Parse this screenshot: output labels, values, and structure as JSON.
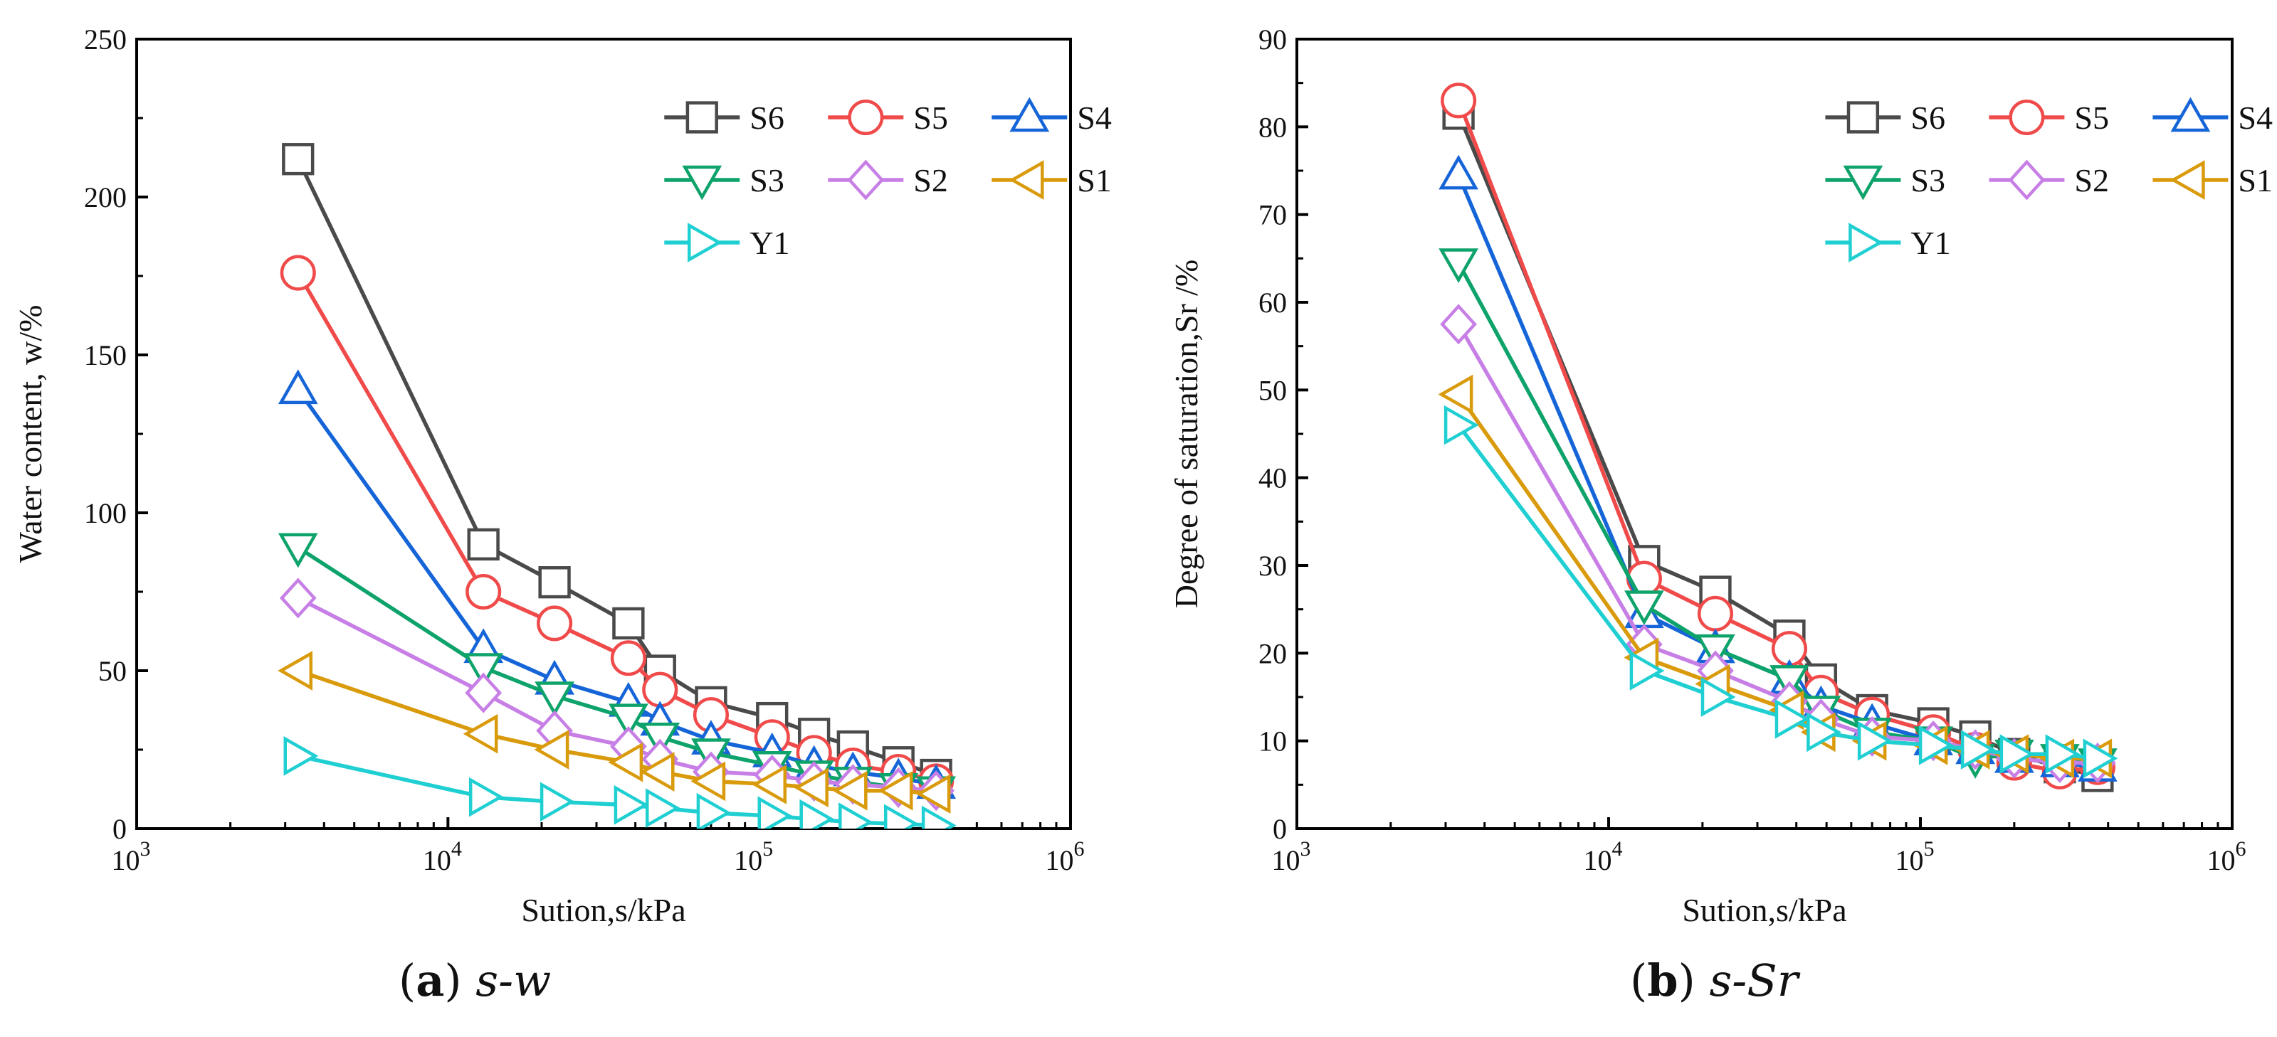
{
  "chart_data": [
    {
      "type": "line",
      "id": "a",
      "caption_letter": "a",
      "caption_text": "s-w",
      "xscale": "log",
      "xlabel": "Sution,s/kPa",
      "ylabel": "Water content, w/%",
      "xlim": [
        1000,
        1000000
      ],
      "ylim": [
        0,
        250
      ],
      "x_ticks": [
        {
          "base": "10",
          "exp": "3"
        },
        {
          "base": "10",
          "exp": "4"
        },
        {
          "base": "10",
          "exp": "5"
        },
        {
          "base": "10",
          "exp": "6"
        }
      ],
      "y_ticks": [
        "0",
        "50",
        "100",
        "150",
        "200",
        "250"
      ],
      "legend_position": "top-right",
      "series": [
        {
          "name": "S6",
          "color": "#4a4a4a",
          "marker": "square",
          "x": [
            3300,
            13000,
            22000,
            38000,
            48000,
            70000,
            110000,
            150000,
            200000,
            280000,
            370000
          ],
          "y": [
            212,
            90,
            78,
            65,
            50,
            40,
            35,
            30,
            26,
            21,
            17
          ]
        },
        {
          "name": "S5",
          "color": "#f04a4a",
          "marker": "circle",
          "x": [
            3300,
            13000,
            22000,
            38000,
            48000,
            70000,
            110000,
            150000,
            200000,
            280000,
            370000
          ],
          "y": [
            176,
            75,
            65,
            54,
            44,
            36,
            29,
            24,
            20,
            18,
            15
          ]
        },
        {
          "name": "S4",
          "color": "#1565d8",
          "marker": "triangle-up",
          "x": [
            3300,
            13000,
            22000,
            38000,
            48000,
            70000,
            110000,
            150000,
            200000,
            280000,
            370000
          ],
          "y": [
            139,
            57,
            47,
            40,
            34,
            28,
            24,
            20,
            18,
            16,
            14
          ]
        },
        {
          "name": "S3",
          "color": "#0ea36a",
          "marker": "triangle-down",
          "x": [
            3300,
            13000,
            22000,
            38000,
            48000,
            70000,
            110000,
            150000,
            200000,
            280000,
            370000
          ],
          "y": [
            89,
            51,
            42,
            35,
            29,
            24,
            20,
            17,
            15,
            13,
            12
          ]
        },
        {
          "name": "S2",
          "color": "#c77fe6",
          "marker": "diamond",
          "x": [
            3300,
            13000,
            22000,
            38000,
            48000,
            70000,
            110000,
            150000,
            200000,
            280000,
            370000
          ],
          "y": [
            73,
            43,
            31,
            26,
            22,
            18,
            17,
            15,
            14,
            13,
            12
          ]
        },
        {
          "name": "S1",
          "color": "#d99a0b",
          "marker": "triangle-left",
          "x": [
            3300,
            13000,
            22000,
            38000,
            48000,
            70000,
            110000,
            150000,
            200000,
            280000,
            370000
          ],
          "y": [
            50,
            30,
            25,
            21,
            18,
            15,
            14,
            13,
            12,
            12,
            11
          ]
        },
        {
          "name": "Y1",
          "color": "#1fcfd2",
          "marker": "triangle-right",
          "x": [
            3300,
            13000,
            22000,
            38000,
            48000,
            70000,
            110000,
            150000,
            200000,
            280000,
            370000
          ],
          "y": [
            23,
            10,
            8.5,
            7.5,
            6.5,
            5,
            4,
            3,
            2,
            1.5,
            1
          ]
        }
      ]
    },
    {
      "type": "line",
      "id": "b",
      "caption_letter": "b",
      "caption_text": "s-Sr",
      "xscale": "log",
      "xlabel": "Sution,s/kPa",
      "ylabel": "Degree of saturation,Sr /%",
      "xlim": [
        1000,
        1000000
      ],
      "ylim": [
        0,
        90
      ],
      "x_ticks": [
        {
          "base": "10",
          "exp": "3"
        },
        {
          "base": "10",
          "exp": "4"
        },
        {
          "base": "10",
          "exp": "5"
        },
        {
          "base": "10",
          "exp": "6"
        }
      ],
      "y_ticks": [
        "0",
        "10",
        "20",
        "30",
        "40",
        "50",
        "60",
        "70",
        "80",
        "90"
      ],
      "legend_position": "top-right",
      "series": [
        {
          "name": "S6",
          "color": "#4a4a4a",
          "marker": "square",
          "x": [
            3300,
            13000,
            22000,
            38000,
            48000,
            70000,
            110000,
            150000,
            200000,
            280000,
            370000
          ],
          "y": [
            81.5,
            30.5,
            27,
            22,
            17,
            13.5,
            12,
            10.5,
            8.5,
            7,
            6
          ]
        },
        {
          "name": "S5",
          "color": "#f04a4a",
          "marker": "circle",
          "x": [
            3300,
            13000,
            22000,
            38000,
            48000,
            70000,
            110000,
            150000,
            200000,
            280000,
            370000
          ],
          "y": [
            83,
            28.5,
            24.5,
            20.5,
            15.5,
            13,
            11,
            9,
            7.5,
            6.5,
            7
          ]
        },
        {
          "name": "S4",
          "color": "#1565d8",
          "marker": "triangle-up",
          "x": [
            3300,
            13000,
            22000,
            38000,
            48000,
            70000,
            110000,
            150000,
            200000,
            280000,
            370000
          ],
          "y": [
            74.5,
            24.5,
            20.5,
            17,
            14,
            12,
            10,
            9,
            8,
            7.5,
            7
          ]
        },
        {
          "name": "S3",
          "color": "#0ea36a",
          "marker": "triangle-down",
          "x": [
            3300,
            13000,
            22000,
            38000,
            48000,
            70000,
            110000,
            150000,
            200000,
            280000,
            370000
          ],
          "y": [
            64.5,
            25.5,
            20.5,
            17,
            13.5,
            11,
            10,
            8,
            8.5,
            8,
            7.5
          ]
        },
        {
          "name": "S2",
          "color": "#c77fe6",
          "marker": "diamond",
          "x": [
            3300,
            13000,
            22000,
            38000,
            48000,
            70000,
            110000,
            150000,
            200000,
            280000,
            370000
          ],
          "y": [
            57.5,
            21,
            18,
            14.5,
            12.5,
            10.5,
            10,
            9,
            8,
            7.5,
            7.5
          ]
        },
        {
          "name": "S1",
          "color": "#d99a0b",
          "marker": "triangle-left",
          "x": [
            3300,
            13000,
            22000,
            38000,
            48000,
            70000,
            110000,
            150000,
            200000,
            280000,
            370000
          ],
          "y": [
            49.5,
            19.5,
            16.5,
            13.5,
            11,
            10,
            9.5,
            9,
            8.5,
            8,
            8
          ]
        },
        {
          "name": "Y1",
          "color": "#1fcfd2",
          "marker": "triangle-right",
          "x": [
            3300,
            13000,
            22000,
            38000,
            48000,
            70000,
            110000,
            150000,
            200000,
            280000,
            370000
          ],
          "y": [
            46,
            18,
            15,
            12.5,
            11,
            10,
            9.5,
            9,
            8.5,
            8.5,
            8
          ]
        }
      ]
    }
  ]
}
